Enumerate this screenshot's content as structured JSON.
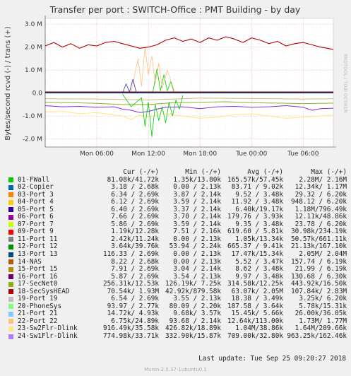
{
  "chart_data": {
    "type": "line",
    "title": "Transfer per port : SWITCH-Office : PMT Building - by day",
    "ylabel": "Bytes/second rcvd (-) / trans (+)",
    "watermark": "RRDTOOL / TOBI OETIKER",
    "ylim": [
      -2.35,
      3.25
    ],
    "xlim": [
      0,
      33.5
    ],
    "y_ticks": [
      {
        "v": 3.0,
        "label": "3.0 M"
      },
      {
        "v": 2.0,
        "label": "2.0 M"
      },
      {
        "v": 1.0,
        "label": "1.0 M"
      },
      {
        "v": 0.0,
        "label": "0.0"
      },
      {
        "v": -1.0,
        "label": "-1.0 M"
      },
      {
        "v": -2.0,
        "label": "-2.0 M"
      }
    ],
    "x_ticks": [
      {
        "v": 6,
        "label": "Mon 06:00"
      },
      {
        "v": 12,
        "label": "Mon 12:00"
      },
      {
        "v": 18,
        "label": "Mon 18:00"
      },
      {
        "v": 24,
        "label": "Tue 00:00"
      },
      {
        "v": 30,
        "label": "Tue 06:00"
      }
    ],
    "series": [
      {
        "name": "24-Sw1Flr-Dlink (trans)",
        "color": "#8a2be2",
        "lw": 1.0,
        "points": [
          [
            0,
            -0.55
          ],
          [
            2,
            -0.6
          ],
          [
            4,
            -0.58
          ],
          [
            6,
            -0.62
          ],
          [
            8,
            -0.6
          ],
          [
            9,
            -0.7
          ],
          [
            10,
            -0.75
          ],
          [
            11,
            -0.85
          ],
          [
            12,
            -0.8
          ],
          [
            13,
            -0.7
          ],
          [
            14,
            -0.62
          ],
          [
            16,
            -0.6
          ],
          [
            18,
            -0.68
          ],
          [
            20,
            -0.6
          ],
          [
            22,
            -0.58
          ],
          [
            24,
            -0.62
          ],
          [
            26,
            -0.6
          ],
          [
            28,
            -0.55
          ],
          [
            30,
            -0.62
          ],
          [
            31,
            -0.75
          ],
          [
            32,
            -0.68
          ],
          [
            33.5,
            -0.66
          ]
        ]
      },
      {
        "name": "23-Sw2Flr-Dlink (trans)",
        "color": "#ffe680",
        "lw": 1.0,
        "points": [
          [
            0,
            -0.82
          ],
          [
            2,
            -0.8
          ],
          [
            4,
            -0.9
          ],
          [
            6,
            -0.85
          ],
          [
            8,
            -0.95
          ],
          [
            9,
            -1.0
          ],
          [
            10,
            -1.15
          ],
          [
            11,
            -0.95
          ],
          [
            12,
            -1.05
          ],
          [
            13,
            -0.95
          ],
          [
            14,
            -0.9
          ],
          [
            16,
            -1.0
          ],
          [
            18,
            -1.1
          ],
          [
            20,
            -1.05
          ],
          [
            22,
            -0.95
          ],
          [
            24,
            -0.9
          ],
          [
            26,
            -1.0
          ],
          [
            28,
            -1.1
          ],
          [
            30,
            -1.05
          ],
          [
            32,
            -1.0
          ],
          [
            33.5,
            -0.95
          ]
        ]
      },
      {
        "name": "17-SecNet0 (trans)",
        "color": "#8fb128",
        "lw": 1.0,
        "points": [
          [
            0,
            -0.4
          ],
          [
            3,
            -0.42
          ],
          [
            6,
            -0.45
          ],
          [
            9,
            -0.5
          ],
          [
            12,
            -0.5
          ],
          [
            15,
            -0.42
          ],
          [
            18,
            -0.4
          ],
          [
            21,
            -0.38
          ],
          [
            24,
            -0.42
          ],
          [
            27,
            -0.44
          ],
          [
            30,
            -0.46
          ],
          [
            33.5,
            -0.44
          ]
        ]
      },
      {
        "name": "19-Port 19 (trans)",
        "color": "#c8b98c",
        "lw": 1.0,
        "points": [
          [
            0,
            -0.25
          ],
          [
            6,
            -0.26
          ],
          [
            12,
            -0.3
          ],
          [
            18,
            -0.22
          ],
          [
            24,
            -0.24
          ],
          [
            30,
            -0.26
          ],
          [
            33.5,
            -0.25
          ]
        ]
      },
      {
        "name": "01-FWall (trans)",
        "color": "#00cc00",
        "lw": 0.8,
        "points": [
          [
            9,
            -0.05
          ],
          [
            10,
            -0.6
          ],
          [
            11.2,
            -0.2
          ],
          [
            11.6,
            -1.45
          ],
          [
            12.0,
            -0.4
          ],
          [
            12.4,
            -1.9
          ],
          [
            12.8,
            -0.5
          ],
          [
            13.2,
            -1.2
          ],
          [
            13.6,
            -0.6
          ],
          [
            14.0,
            -1.3
          ],
          [
            14.4,
            -0.4
          ],
          [
            14.8,
            -1.0
          ],
          [
            15.2,
            -0.3
          ],
          [
            15.6,
            -0.7
          ],
          [
            16,
            -0.1
          ]
        ]
      },
      {
        "name": "01-FWall (rcvd)",
        "color": "#00cc00",
        "lw": 0.8,
        "points": [
          [
            12.5,
            0.0
          ],
          [
            13.0,
            1.05
          ],
          [
            13.4,
            0.1
          ],
          [
            13.8,
            0.8
          ],
          [
            14.2,
            0.1
          ],
          [
            14.6,
            0.5
          ],
          [
            15,
            0.0
          ]
        ]
      },
      {
        "name": "22-Port 22 (rcvd)",
        "color": "#ffc080",
        "lw": 0.8,
        "points": [
          [
            10,
            0.05
          ],
          [
            10.8,
            1.5
          ],
          [
            11.2,
            0.3
          ],
          [
            11.6,
            2.0
          ],
          [
            12.0,
            0.8
          ],
          [
            12.4,
            1.6
          ],
          [
            12.8,
            0.4
          ],
          [
            13.2,
            1.3
          ],
          [
            13.6,
            0.2
          ],
          [
            14.2,
            1.0
          ],
          [
            15,
            0.1
          ]
        ]
      },
      {
        "name": "05-Port 5 (rcvd)",
        "color": "#3333aa",
        "lw": 0.8,
        "points": [
          [
            9,
            0.0
          ],
          [
            9.4,
            0.4
          ],
          [
            9.8,
            0.05
          ],
          [
            10.2,
            0.6
          ],
          [
            10.6,
            0.0
          ]
        ]
      },
      {
        "name": "14-NAS (rcvd)",
        "color": "#000000",
        "lw": 1.0,
        "points": [
          [
            0,
            0.03
          ],
          [
            33.5,
            0.03
          ]
        ]
      },
      {
        "name": "02-Copier (rcvd)",
        "color": "#0066b3",
        "lw": 1.0,
        "points": [
          [
            0,
            0.0
          ],
          [
            33.5,
            0.0
          ]
        ]
      },
      {
        "name": "18-SecSysHEAD (trans)",
        "color": "#b00000",
        "lw": 1.0,
        "points": [
          [
            0,
            0.05
          ],
          [
            33.5,
            0.05
          ]
        ]
      },
      {
        "name": "18-SecSysHEAD (rcvd)",
        "color": "#b00000",
        "lw": 1.1,
        "points": [
          [
            0,
            2.05
          ],
          [
            1,
            2.2
          ],
          [
            2,
            2.0
          ],
          [
            3,
            2.15
          ],
          [
            4,
            1.95
          ],
          [
            5,
            2.1
          ],
          [
            6,
            2.05
          ],
          [
            7,
            2.2
          ],
          [
            8,
            2.25
          ],
          [
            9,
            2.15
          ],
          [
            10,
            2.05
          ],
          [
            11,
            1.95
          ],
          [
            12,
            2.0
          ],
          [
            13,
            2.1
          ],
          [
            14,
            2.3
          ],
          [
            15,
            2.4
          ],
          [
            16,
            2.25
          ],
          [
            17,
            2.35
          ],
          [
            18,
            2.2
          ],
          [
            19,
            2.4
          ],
          [
            20,
            2.3
          ],
          [
            21,
            2.45
          ],
          [
            22,
            2.35
          ],
          [
            23,
            2.2
          ],
          [
            24,
            2.4
          ],
          [
            25,
            2.3
          ],
          [
            26,
            2.15
          ],
          [
            27,
            2.25
          ],
          [
            28,
            2.05
          ],
          [
            29,
            2.15
          ],
          [
            30,
            2.2
          ],
          [
            31,
            2.1
          ],
          [
            32,
            2.0
          ],
          [
            33.5,
            1.9
          ]
        ]
      }
    ],
    "legend_header": {
      "name": "",
      "cur": "Cur (-/+)",
      "min": "Min (-/+)",
      "avg": "Avg (-/+)",
      "max": "Max (-/+)"
    },
    "legend": [
      {
        "name": "01-FWall",
        "color": "#00cc00",
        "cur": "81.08k/41.72k",
        "min": "1.35k/13.80k",
        "avg": "165.57k/57.45k",
        "max": "2.28M/ 2.16M"
      },
      {
        "name": "02-Copier",
        "color": "#0066b3",
        "cur": "3.18 / 2.68k",
        "min": "0.00 / 2.13k",
        "avg": "83.71 / 9.02k",
        "max": "12.34k/ 1.17M"
      },
      {
        "name": "03-Port 3",
        "color": "#ff8000",
        "cur": "6.34 / 2.69k",
        "min": "3.87 / 2.14k",
        "avg": "9.52 / 3.48k",
        "max": "29.32 / 6.20k"
      },
      {
        "name": "04-Port 4",
        "color": "#ffcc00",
        "cur": "6.12 / 2.69k",
        "min": "3.59 / 2.14k",
        "avg": "11.92 / 3.48k",
        "max": "948.12 / 6.20k"
      },
      {
        "name": "05-Port 5",
        "color": "#330099",
        "cur": "6.40 / 2.69k",
        "min": "3.37 / 2.14k",
        "avg": "6.40k/19.17k",
        "max": "1.18M/796.49k"
      },
      {
        "name": "06-Port 6",
        "color": "#990099",
        "cur": "7.66 / 2.69k",
        "min": "3.70 / 2.14k",
        "avg": "179.76 / 3.93k",
        "max": "12.11k/48.86k"
      },
      {
        "name": "07-Port 7",
        "color": "#ccff00",
        "cur": "5.86 / 2.69k",
        "min": "3.59 / 2.14k",
        "avg": "9.35 / 3.48k",
        "max": "23.78 / 6.20k"
      },
      {
        "name": "09-Port 9",
        "color": "#ff0000",
        "cur": "1.19k/12.28k",
        "min": "7.51 / 2.16k",
        "avg": "619.60 / 5.81k",
        "max": "30.98k/234.19k"
      },
      {
        "name": "11-Port 11",
        "color": "#808080",
        "cur": "2.42k/11.24k",
        "min": "0.00 / 2.13k",
        "avg": "1.05k/13.34k",
        "max": "50.57k/661.11k"
      },
      {
        "name": "12-Port 12",
        "color": "#008f00",
        "cur": "3.64k/39.76k",
        "min": "53.94 / 2.24k",
        "avg": "665.37 / 9.41k",
        "max": "21.13k/167.10k"
      },
      {
        "name": "13-Port 13",
        "color": "#00487d",
        "cur": "116.33 / 2.69k",
        "min": "0.00 / 2.13k",
        "avg": "17.47k/15.34k",
        "max": "2.05M/ 2.04M"
      },
      {
        "name": "14-NAS",
        "color": "#b35a00",
        "cur": "8.22 / 2.68k",
        "min": "0.00 / 2.13k",
        "avg": "5.52 / 3.47k",
        "max": "157.74 / 6.19k"
      },
      {
        "name": "15-Port 15",
        "color": "#b38f00",
        "cur": "7.91 / 2.69k",
        "min": "3.04 / 2.14k",
        "avg": "8.62 / 3.48k",
        "max": "21.99 / 6.19k"
      },
      {
        "name": "16-Port 16",
        "color": "#6b006b",
        "cur": "5.87 / 2.69k",
        "min": "3.54 / 2.13k",
        "avg": "9.97 / 3.48k",
        "max": "130.68 / 6.30k"
      },
      {
        "name": "17-SecNet0",
        "color": "#8fb300",
        "cur": "256.31k/12.53k",
        "min": "126.19k/ 7.25k",
        "avg": "314.58k/12.25k",
        "max": "443.92k/16.50k"
      },
      {
        "name": "18-SecSysHEAD",
        "color": "#b30000",
        "cur": "70.54k/ 1.93M",
        "min": "42.92k/879.58k",
        "avg": "63.07k/ 2.05M",
        "max": "107.84k/ 2.83M"
      },
      {
        "name": "19-Port 19",
        "color": "#bebebe",
        "cur": "6.54 / 2.69k",
        "min": "3.55 / 2.13k",
        "avg": "18.38 / 3.49k",
        "max": "3.25k/ 6.20k"
      },
      {
        "name": "20-PhoneSys",
        "color": "#80ff80",
        "cur": "93.97 / 2.77k",
        "min": "80.09 / 2.20k",
        "avg": "187.58 / 3.64k",
        "max": "5.78k/15.31k"
      },
      {
        "name": "21-Port 21",
        "color": "#80c9ff",
        "cur": "14.72k/ 4.93k",
        "min": "9.68k/ 3.57k",
        "avg": "15.45k/ 5.66k",
        "max": "26.00k/36.05k"
      },
      {
        "name": "22-Port 22",
        "color": "#ffc080",
        "cur": "6.75k/24.89k",
        "min": "93.68 / 2.14k",
        "avg": "12.64k/113.00k",
        "max": "1.73M/ 1.77M"
      },
      {
        "name": "23-Sw2Flr-Dlink",
        "color": "#ffe680",
        "cur": "916.49k/35.58k",
        "min": "426.82k/18.89k",
        "avg": "1.04M/38.86k",
        "max": "1.64M/209.66k"
      },
      {
        "name": "24-Sw1Flr-Dlink",
        "color": "#aa80ff",
        "cur": "774.98k/33.71k",
        "min": "332.90k/15.87k",
        "avg": "709.00k/32.80k",
        "max": "963.25k/162.46k"
      }
    ]
  },
  "footer": {
    "last_update": "Last update:  Tue Sep 25 09:20:27 2018",
    "munin_version": "Munin 2.0.37-1ubuntu0.1"
  }
}
